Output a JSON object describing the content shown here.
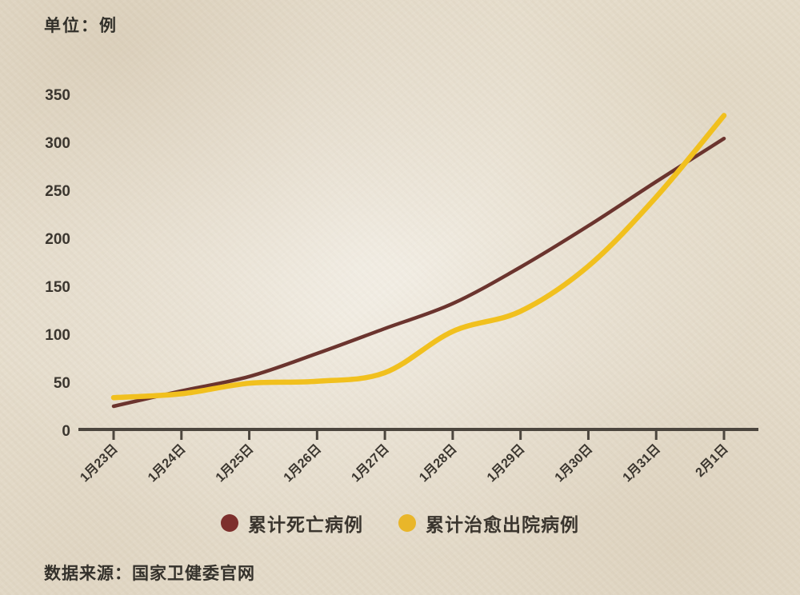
{
  "header": {
    "unit_label": "单位：例"
  },
  "footer": {
    "source": "数据来源：国家卫健委官网"
  },
  "legend": {
    "items": [
      {
        "label": "累计死亡病例",
        "color": "#7d2f2c"
      },
      {
        "label": "累计治愈出院病例",
        "color": "#e9b62a"
      }
    ]
  },
  "chart_data": {
    "type": "line",
    "title": "",
    "unit": "例",
    "categories": [
      "1月23日",
      "1月24日",
      "1月25日",
      "1月26日",
      "1月27日",
      "1月28日",
      "1月29日",
      "1月30日",
      "1月31日",
      "2月1日"
    ],
    "series": [
      {
        "name": "累计死亡病例",
        "color": "#6b342e",
        "values": [
          25,
          41,
          56,
          80,
          106,
          132,
          170,
          213,
          259,
          304
        ]
      },
      {
        "name": "累计治愈出院病例",
        "color": "#f1c01e",
        "values": [
          34,
          38,
          49,
          51,
          60,
          103,
          124,
          171,
          243,
          328
        ]
      }
    ],
    "yticks": [
      0,
      50,
      100,
      150,
      200,
      250,
      300,
      350
    ],
    "ylim": [
      0,
      350
    ],
    "grid": false,
    "legend_position": "bottom",
    "axis_color": "#4c463e",
    "tick_label_color": "#3b362f",
    "x_tick_rotation_deg": -45,
    "source": "数据来源：国家卫健委官网"
  }
}
